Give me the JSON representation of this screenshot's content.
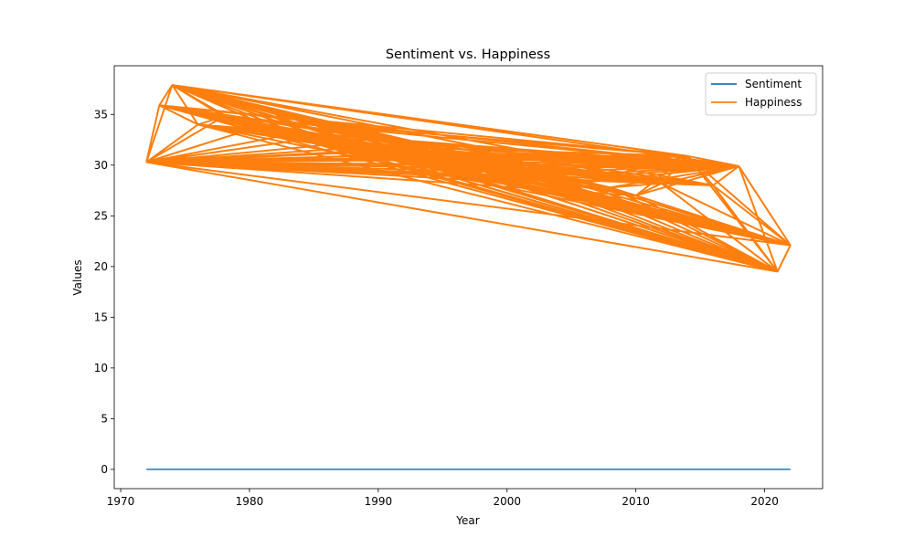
{
  "chart_data": {
    "type": "line",
    "title": "Sentiment vs. Happiness",
    "xlabel": "Year",
    "ylabel": "Values",
    "xlim": [
      1969.5,
      2024.5
    ],
    "ylim": [
      -1.9,
      39.8
    ],
    "xticks": [
      1970,
      1980,
      1990,
      2000,
      2010,
      2020
    ],
    "yticks": [
      0,
      5,
      10,
      15,
      20,
      25,
      30,
      35
    ],
    "grid": false,
    "legend_position": "top-right",
    "series": [
      {
        "name": "Sentiment",
        "color": "#1f77b4",
        "x": [
          1972,
          2022
        ],
        "y": [
          0,
          0
        ]
      },
      {
        "name": "Happiness",
        "color": "#ff7f0e",
        "x": [
          1972,
          1973,
          1974,
          1976,
          1978,
          1980,
          1983,
          1984,
          1986,
          1988,
          1989,
          1990,
          1991,
          1993,
          1994,
          1996,
          1998,
          2000,
          2002,
          2004,
          2006,
          2008,
          2010,
          2012,
          2014,
          2016,
          2018,
          2021,
          2022
        ],
        "y": [
          30.3,
          35.9,
          37.9,
          34.0,
          34.8,
          33.5,
          33.0,
          32.5,
          32.0,
          31.7,
          31.3,
          31.5,
          31.0,
          30.5,
          30.8,
          30.0,
          29.7,
          29.3,
          28.9,
          28.6,
          28.3,
          27.8,
          27.0,
          28.2,
          30.9,
          28.0,
          29.9,
          19.5,
          22.1
        ]
      }
    ]
  }
}
